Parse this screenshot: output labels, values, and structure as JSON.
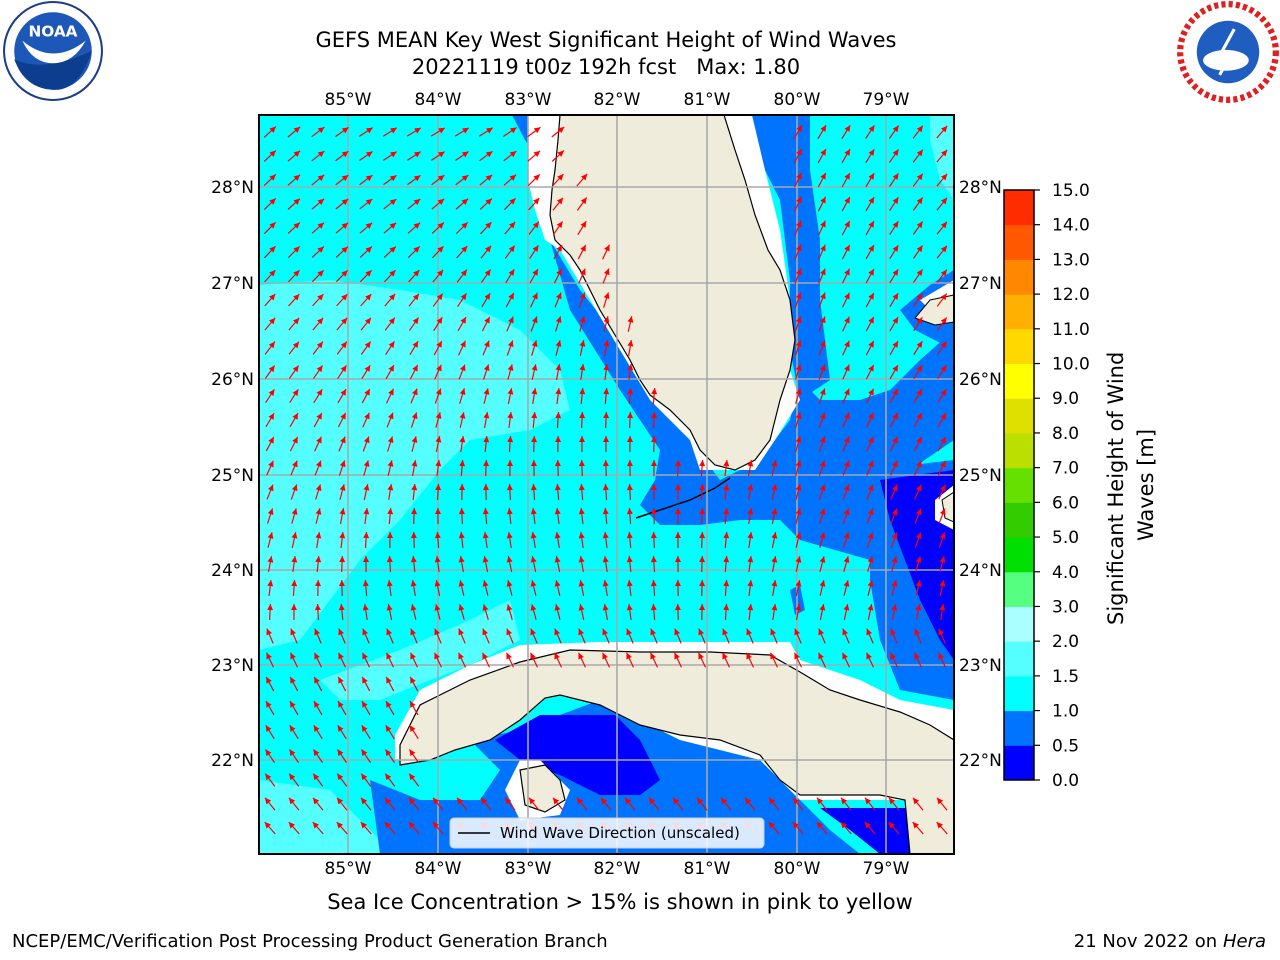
{
  "header": {
    "title_line1": "GEFS MEAN Key West Significant Height of Wind Waves",
    "title_line2": "20221119 t00z 192h fcst",
    "max_label": "Max: 1.80"
  },
  "logos": {
    "noaa": {
      "text": "NOAA",
      "icon": "noaa-logo"
    },
    "nws": {
      "icon": "nws-logo"
    }
  },
  "map": {
    "region": "Key West",
    "longitude_ticks": [
      "85°W",
      "84°W",
      "83°W",
      "82°W",
      "81°W",
      "80°W",
      "79°W"
    ],
    "latitude_ticks": [
      "28°N",
      "27°N",
      "26°N",
      "25°N",
      "24°N",
      "23°N",
      "22°N"
    ],
    "legend": "Wind Wave Direction (unscaled)",
    "arrow_color": "#ff0000",
    "land_color": "#efecdc"
  },
  "colorbar": {
    "label": "Significant Height of Wind Waves [m]",
    "ticks": [
      "0.0",
      "0.5",
      "1.0",
      "1.5",
      "2.0",
      "3.0",
      "4.0",
      "5.0",
      "6.0",
      "7.0",
      "8.0",
      "9.0",
      "10.0",
      "11.0",
      "12.0",
      "13.0",
      "14.0",
      "15.0"
    ],
    "colors": [
      "#0000ff",
      "#0073ff",
      "#00ffff",
      "#55ffff",
      "#aaffff",
      "#55ff80",
      "#00e000",
      "#33cc00",
      "#66e000",
      "#bbe000",
      "#e0e000",
      "#ffff00",
      "#ffd800",
      "#ffb000",
      "#ff8800",
      "#ff5800",
      "#ff2c00"
    ]
  },
  "footer": {
    "sea_ice_note": "Sea Ice Concentration > 15% is shown in pink to yellow",
    "producer": "NCEP/EMC/Verification Post Processing Product Generation Branch",
    "date": "21 Nov 2022 on",
    "host": "Hera"
  }
}
